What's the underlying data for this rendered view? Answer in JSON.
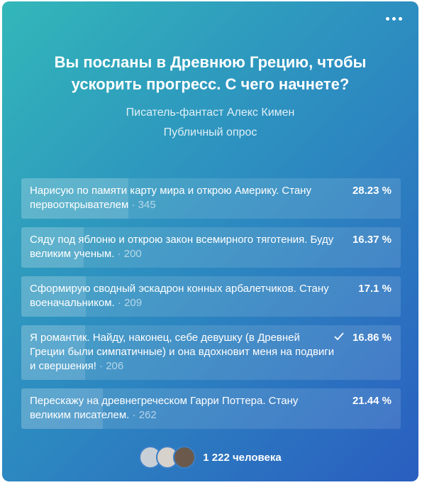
{
  "poll": {
    "title": "Вы посланы в Древнюю Грецию, чтобы ускорить прогресс. С чего начнете?",
    "author": "Писатель-фантаст Алекс Кимен",
    "kind": "Публичный опрос",
    "options": [
      {
        "text": "Нарисую по памяти карту мира и открою Америку. Стану первооткрывателем",
        "votes": 345,
        "percent": 28.23,
        "percent_label": "28.23 %",
        "voted": false
      },
      {
        "text": "Сяду под яблоню и открою закон всемирного тяготения. Буду великим ученым.",
        "votes": 200,
        "percent": 16.37,
        "percent_label": "16.37 %",
        "voted": false
      },
      {
        "text": "Сформирую сводный эскадрон конных арбалетчиков. Стану военачальником.",
        "votes": 209,
        "percent": 17.1,
        "percent_label": "17.1 %",
        "voted": false
      },
      {
        "text": "Я романтик. Найду, наконец, себе девушку (в Древней Греции были симпатичные) и она вдохновит меня на подвиги и свершения!",
        "votes": 206,
        "percent": 16.86,
        "percent_label": "16.86 %",
        "voted": true
      },
      {
        "text": "Перескажу на древнегреческом Гарри Поттера. Стану великим писателем.",
        "votes": 262,
        "percent": 21.44,
        "percent_label": "21.44 %",
        "voted": false
      }
    ],
    "voters": "1 222 человека"
  }
}
